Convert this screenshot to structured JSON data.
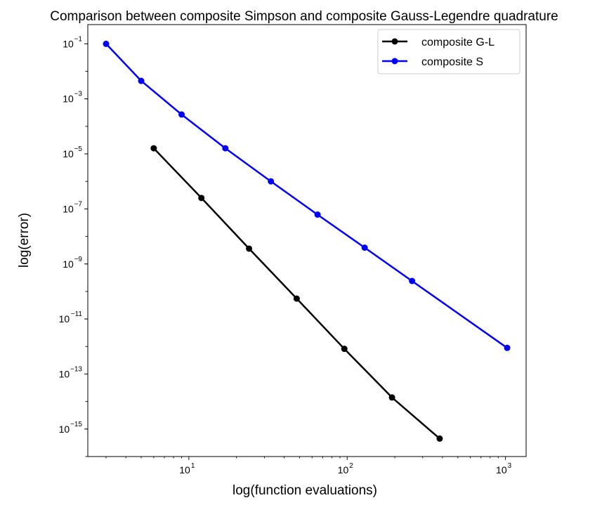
{
  "chart_data": {
    "type": "line",
    "title": "Comparison between composite Simpson and composite Gauss-Legendre quadrature",
    "xlabel": "log(function evaluations)",
    "ylabel": "log(error)",
    "xscale": "log",
    "yscale": "log",
    "xlim": [
      2.3,
      1350
    ],
    "ylim": [
      1e-16,
      0.5
    ],
    "x_ticks": [
      {
        "value": 10,
        "base": "10",
        "exp": "1"
      },
      {
        "value": 100,
        "base": "10",
        "exp": "2"
      },
      {
        "value": 1000,
        "base": "10",
        "exp": "3"
      }
    ],
    "y_ticks": [
      {
        "value": 0.1,
        "base": "10",
        "exp": "−1"
      },
      {
        "value": 0.001,
        "base": "10",
        "exp": "−3"
      },
      {
        "value": 1e-05,
        "base": "10",
        "exp": "−5"
      },
      {
        "value": 1e-07,
        "base": "10",
        "exp": "−7"
      },
      {
        "value": 1e-09,
        "base": "10",
        "exp": "−9"
      },
      {
        "value": 1e-11,
        "base": "10",
        "exp": "−11"
      },
      {
        "value": 1e-13,
        "base": "10",
        "exp": "−13"
      },
      {
        "value": 1e-15,
        "base": "10",
        "exp": "−15"
      }
    ],
    "grid": false,
    "legend_position": "top-right",
    "series": [
      {
        "name": "composite G-L",
        "color": "#000000",
        "marker": "circle",
        "x": [
          6,
          12,
          24,
          48,
          96,
          192,
          384
        ],
        "y": [
          1.6e-05,
          2.5e-07,
          3.6e-09,
          5.5e-11,
          8.2e-13,
          1.4e-14,
          4.5e-16
        ]
      },
      {
        "name": "composite S",
        "color": "#0000ff",
        "marker": "circle",
        "x": [
          3,
          5,
          9,
          17,
          33,
          65,
          129,
          257,
          1025
        ],
        "y": [
          0.1,
          0.0045,
          0.00027,
          1.6e-05,
          1e-06,
          6.2e-08,
          3.9e-09,
          2.4e-10,
          8.9e-13
        ]
      }
    ]
  }
}
